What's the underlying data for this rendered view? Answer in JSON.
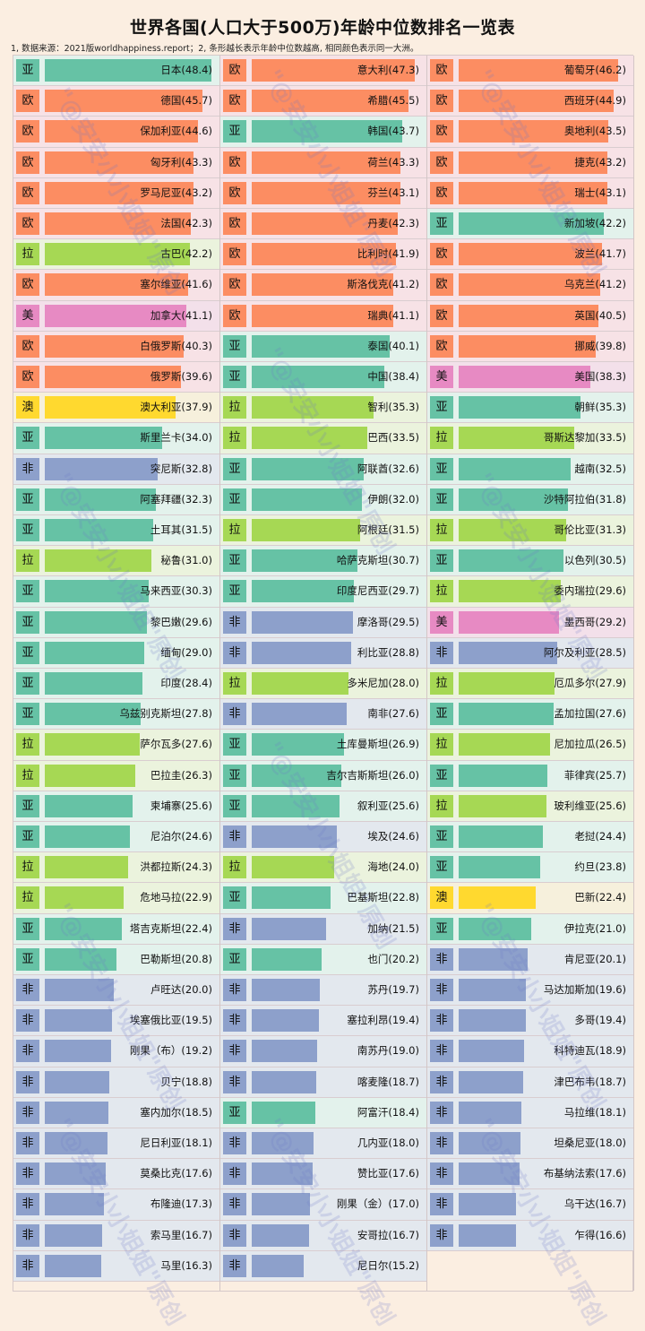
{
  "title": "世界各国(人口大于500万)年龄中位数排名一览表",
  "note": "1, 数据来源：2021版worldhappiness.report；2, 条形越长表示年龄中位数越高, 相同颜色表示同一大洲。",
  "watermark": "\"@安安小小姐姐\"原创",
  "continent_colors": {
    "亚": "#66c2a5",
    "欧": "#fc8d62",
    "非": "#8da0cb",
    "拉": "#a6d854",
    "美": "#e78ac3",
    "澳": "#ffd92f"
  },
  "row_backgrounds": {
    "亚": "#e3f2ec",
    "欧": "#f7e2e6",
    "非": "#e3e8ee",
    "拉": "#ebf3dd",
    "美": "#f3e0ea",
    "澳": "#f6f0dc"
  },
  "chart_data": {
    "type": "bar",
    "columns": [
      [
        {
          "c": "亚",
          "name": "日本",
          "v": 48.4
        },
        {
          "c": "欧",
          "name": "德国",
          "v": 45.7
        },
        {
          "c": "欧",
          "name": "保加利亚",
          "v": 44.6
        },
        {
          "c": "欧",
          "name": "匈牙利",
          "v": 43.3
        },
        {
          "c": "欧",
          "name": "罗马尼亚",
          "v": 43.2
        },
        {
          "c": "欧",
          "name": "法国",
          "v": 42.3
        },
        {
          "c": "拉",
          "name": "古巴",
          "v": 42.2
        },
        {
          "c": "欧",
          "name": "塞尔维亚",
          "v": 41.6
        },
        {
          "c": "美",
          "name": "加拿大",
          "v": 41.1
        },
        {
          "c": "欧",
          "name": "白俄罗斯",
          "v": 40.3
        },
        {
          "c": "欧",
          "name": "俄罗斯",
          "v": 39.6
        },
        {
          "c": "澳",
          "name": "澳大利亚",
          "v": 37.9
        },
        {
          "c": "亚",
          "name": "斯里兰卡",
          "v": 34.0
        },
        {
          "c": "非",
          "name": "突尼斯",
          "v": 32.8
        },
        {
          "c": "亚",
          "name": "阿塞拜疆",
          "v": 32.3
        },
        {
          "c": "亚",
          "name": "土耳其",
          "v": 31.5
        },
        {
          "c": "拉",
          "name": "秘鲁",
          "v": 31.0
        },
        {
          "c": "亚",
          "name": "马来西亚",
          "v": 30.3
        },
        {
          "c": "亚",
          "name": "黎巴嫩",
          "v": 29.6
        },
        {
          "c": "亚",
          "name": "缅甸",
          "v": 29.0
        },
        {
          "c": "亚",
          "name": "印度",
          "v": 28.4
        },
        {
          "c": "亚",
          "name": "乌兹别克斯坦",
          "v": 27.8
        },
        {
          "c": "拉",
          "name": "萨尔瓦多",
          "v": 27.6
        },
        {
          "c": "拉",
          "name": "巴拉圭",
          "v": 26.3
        },
        {
          "c": "亚",
          "name": "柬埔寨",
          "v": 25.6
        },
        {
          "c": "亚",
          "name": "尼泊尔",
          "v": 24.6
        },
        {
          "c": "拉",
          "name": "洪都拉斯",
          "v": 24.3
        },
        {
          "c": "拉",
          "name": "危地马拉",
          "v": 22.9
        },
        {
          "c": "亚",
          "name": "塔吉克斯坦",
          "v": 22.4
        },
        {
          "c": "亚",
          "name": "巴勒斯坦",
          "v": 20.8
        },
        {
          "c": "非",
          "name": "卢旺达",
          "v": 20.0
        },
        {
          "c": "非",
          "name": "埃塞俄比亚",
          "v": 19.5
        },
        {
          "c": "非",
          "name": "刚果（布）",
          "v": 19.2
        },
        {
          "c": "非",
          "name": "贝宁",
          "v": 18.8
        },
        {
          "c": "非",
          "name": "塞内加尔",
          "v": 18.5
        },
        {
          "c": "非",
          "name": "尼日利亚",
          "v": 18.1
        },
        {
          "c": "非",
          "name": "莫桑比克",
          "v": 17.6
        },
        {
          "c": "非",
          "name": "布隆迪",
          "v": 17.3
        },
        {
          "c": "非",
          "name": "索马里",
          "v": 16.7
        },
        {
          "c": "非",
          "name": "马里",
          "v": 16.3
        }
      ],
      [
        {
          "c": "欧",
          "name": "意大利",
          "v": 47.3
        },
        {
          "c": "欧",
          "name": "希腊",
          "v": 45.5
        },
        {
          "c": "亚",
          "name": "韩国",
          "v": 43.7
        },
        {
          "c": "欧",
          "name": "荷兰",
          "v": 43.3
        },
        {
          "c": "欧",
          "name": "芬兰",
          "v": 43.1
        },
        {
          "c": "欧",
          "name": "丹麦",
          "v": 42.3
        },
        {
          "c": "欧",
          "name": "比利时",
          "v": 41.9
        },
        {
          "c": "欧",
          "name": "斯洛伐克",
          "v": 41.2
        },
        {
          "c": "欧",
          "name": "瑞典",
          "v": 41.1
        },
        {
          "c": "亚",
          "name": "泰国",
          "v": 40.1
        },
        {
          "c": "亚",
          "name": "中国",
          "v": 38.4
        },
        {
          "c": "拉",
          "name": "智利",
          "v": 35.3
        },
        {
          "c": "拉",
          "name": "巴西",
          "v": 33.5
        },
        {
          "c": "亚",
          "name": "阿联酋",
          "v": 32.6
        },
        {
          "c": "亚",
          "name": "伊朗",
          "v": 32.0
        },
        {
          "c": "拉",
          "name": "阿根廷",
          "v": 31.5
        },
        {
          "c": "亚",
          "name": "哈萨克斯坦",
          "v": 30.7
        },
        {
          "c": "亚",
          "name": "印度尼西亚",
          "v": 29.7
        },
        {
          "c": "非",
          "name": "摩洛哥",
          "v": 29.5
        },
        {
          "c": "非",
          "name": "利比亚",
          "v": 28.8
        },
        {
          "c": "拉",
          "name": "多米尼加",
          "v": 28.0
        },
        {
          "c": "非",
          "name": "南非",
          "v": 27.6
        },
        {
          "c": "亚",
          "name": "土库曼斯坦",
          "v": 26.9
        },
        {
          "c": "亚",
          "name": "吉尔吉斯斯坦",
          "v": 26.0
        },
        {
          "c": "亚",
          "name": "叙利亚",
          "v": 25.6
        },
        {
          "c": "非",
          "name": "埃及",
          "v": 24.6
        },
        {
          "c": "拉",
          "name": "海地",
          "v": 24.0
        },
        {
          "c": "亚",
          "name": "巴基斯坦",
          "v": 22.8
        },
        {
          "c": "非",
          "name": "加纳",
          "v": 21.5
        },
        {
          "c": "亚",
          "name": "也门",
          "v": 20.2
        },
        {
          "c": "非",
          "name": "苏丹",
          "v": 19.7
        },
        {
          "c": "非",
          "name": "塞拉利昂",
          "v": 19.4
        },
        {
          "c": "非",
          "name": "南苏丹",
          "v": 19.0
        },
        {
          "c": "非",
          "name": "喀麦隆",
          "v": 18.7
        },
        {
          "c": "亚",
          "name": "阿富汗",
          "v": 18.4
        },
        {
          "c": "非",
          "name": "几内亚",
          "v": 18.0
        },
        {
          "c": "非",
          "name": "赞比亚",
          "v": 17.6
        },
        {
          "c": "非",
          "name": "刚果（金）",
          "v": 17.0
        },
        {
          "c": "非",
          "name": "安哥拉",
          "v": 16.7
        },
        {
          "c": "非",
          "name": "尼日尔",
          "v": 15.2
        }
      ],
      [
        {
          "c": "欧",
          "name": "葡萄牙",
          "v": 46.2
        },
        {
          "c": "欧",
          "name": "西班牙",
          "v": 44.9
        },
        {
          "c": "欧",
          "name": "奥地利",
          "v": 43.5
        },
        {
          "c": "欧",
          "name": "捷克",
          "v": 43.2
        },
        {
          "c": "欧",
          "name": "瑞士",
          "v": 43.1
        },
        {
          "c": "亚",
          "name": "新加坡",
          "v": 42.2
        },
        {
          "c": "欧",
          "name": "波兰",
          "v": 41.7
        },
        {
          "c": "欧",
          "name": "乌克兰",
          "v": 41.2
        },
        {
          "c": "欧",
          "name": "英国",
          "v": 40.5
        },
        {
          "c": "欧",
          "name": "挪威",
          "v": 39.8
        },
        {
          "c": "美",
          "name": "美国",
          "v": 38.3
        },
        {
          "c": "亚",
          "name": "朝鲜",
          "v": 35.3
        },
        {
          "c": "拉",
          "name": "哥斯达黎加",
          "v": 33.5
        },
        {
          "c": "亚",
          "name": "越南",
          "v": 32.5
        },
        {
          "c": "亚",
          "name": "沙特阿拉伯",
          "v": 31.8
        },
        {
          "c": "拉",
          "name": "哥伦比亚",
          "v": 31.3
        },
        {
          "c": "亚",
          "name": "以色列",
          "v": 30.5
        },
        {
          "c": "拉",
          "name": "委内瑞拉",
          "v": 29.6
        },
        {
          "c": "美",
          "name": "墨西哥",
          "v": 29.2
        },
        {
          "c": "非",
          "name": "阿尔及利亚",
          "v": 28.5
        },
        {
          "c": "拉",
          "name": "厄瓜多尔",
          "v": 27.9
        },
        {
          "c": "亚",
          "name": "孟加拉国",
          "v": 27.6
        },
        {
          "c": "拉",
          "name": "尼加拉瓜",
          "v": 26.5
        },
        {
          "c": "亚",
          "name": "菲律宾",
          "v": 25.7
        },
        {
          "c": "拉",
          "name": "玻利维亚",
          "v": 25.6
        },
        {
          "c": "亚",
          "name": "老挝",
          "v": 24.4
        },
        {
          "c": "亚",
          "name": "约旦",
          "v": 23.8
        },
        {
          "c": "澳",
          "name": "巴新",
          "v": 22.4
        },
        {
          "c": "亚",
          "name": "伊拉克",
          "v": 21.0
        },
        {
          "c": "非",
          "name": "肯尼亚",
          "v": 20.1
        },
        {
          "c": "非",
          "name": "马达加斯加",
          "v": 19.6
        },
        {
          "c": "非",
          "name": "多哥",
          "v": 19.4
        },
        {
          "c": "非",
          "name": "科特迪瓦",
          "v": 18.9
        },
        {
          "c": "非",
          "name": "津巴布韦",
          "v": 18.7
        },
        {
          "c": "非",
          "name": "马拉维",
          "v": 18.1
        },
        {
          "c": "非",
          "name": "坦桑尼亚",
          "v": 18.0
        },
        {
          "c": "非",
          "name": "布基纳法索",
          "v": 17.6
        },
        {
          "c": "非",
          "name": "乌干达",
          "v": 16.7
        },
        {
          "c": "非",
          "name": "乍得",
          "v": 16.6
        }
      ]
    ]
  }
}
